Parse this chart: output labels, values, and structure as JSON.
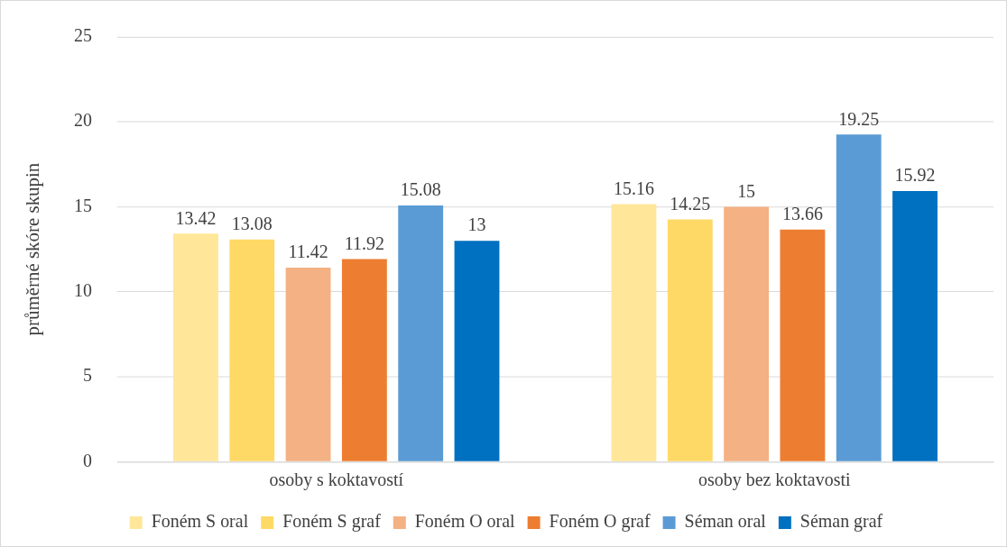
{
  "chart_data": {
    "type": "bar",
    "ylabel": "průměrné skóre skupin",
    "categories": [
      "osoby s koktavostí",
      "osoby bez koktavosti"
    ],
    "series": [
      {
        "name": "Foném S oral",
        "color": "#ffe699",
        "values": [
          13.42,
          15.16
        ]
      },
      {
        "name": "Foném S graf",
        "color": "#ffd966",
        "values": [
          13.08,
          14.25
        ]
      },
      {
        "name": "Foném O oral",
        "color": "#f4b183",
        "values": [
          11.42,
          15
        ]
      },
      {
        "name": "Foném O graf",
        "color": "#ed7d31",
        "values": [
          11.92,
          13.66
        ]
      },
      {
        "name": "Séman oral",
        "color": "#5b9bd5",
        "values": [
          15.08,
          19.25
        ]
      },
      {
        "name": "Séman graf",
        "color": "#0070c0",
        "values": [
          13,
          15.92
        ]
      }
    ],
    "ylim": [
      0,
      25
    ],
    "yticks": [
      0,
      5,
      10,
      15,
      20,
      25
    ],
    "grid": "y",
    "legend": "bottom",
    "data_labels": true
  }
}
